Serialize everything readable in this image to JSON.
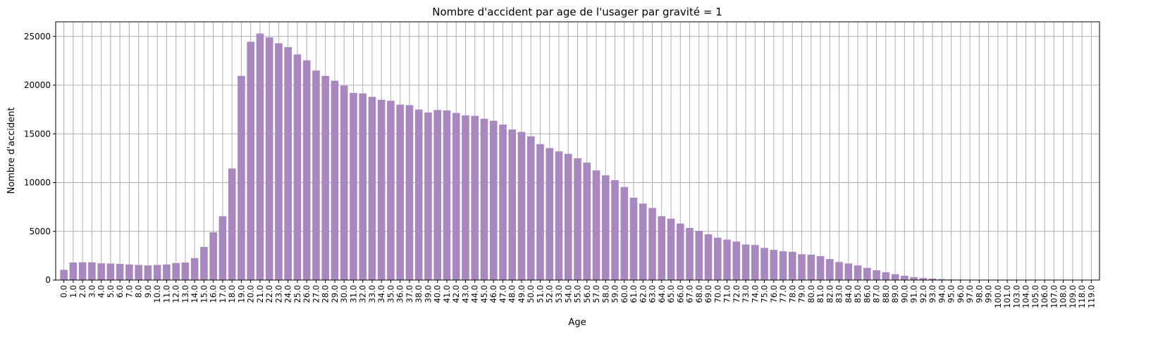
{
  "chart_data": {
    "type": "bar",
    "title": "Nombre d'accident par age de l'usager par gravité = 1",
    "xlabel": "Age",
    "ylabel": "Nombre d'accident",
    "ylim": [
      0,
      26500
    ],
    "yticks": [
      0,
      5000,
      10000,
      15000,
      20000,
      25000
    ],
    "grid": true,
    "bar_color": "#a987bf",
    "categories": [
      "0.0",
      "1.0",
      "2.0",
      "3.0",
      "4.0",
      "5.0",
      "6.0",
      "7.0",
      "8.0",
      "9.0",
      "10.0",
      "11.0",
      "12.0",
      "13.0",
      "14.0",
      "15.0",
      "16.0",
      "17.0",
      "18.0",
      "19.0",
      "20.0",
      "21.0",
      "22.0",
      "23.0",
      "24.0",
      "25.0",
      "26.0",
      "27.0",
      "28.0",
      "29.0",
      "30.0",
      "31.0",
      "32.0",
      "33.0",
      "34.0",
      "35.0",
      "36.0",
      "37.0",
      "38.0",
      "39.0",
      "40.0",
      "41.0",
      "42.0",
      "43.0",
      "44.0",
      "45.0",
      "46.0",
      "47.0",
      "48.0",
      "49.0",
      "50.0",
      "51.0",
      "52.0",
      "53.0",
      "54.0",
      "55.0",
      "56.0",
      "57.0",
      "58.0",
      "59.0",
      "60.0",
      "61.0",
      "62.0",
      "63.0",
      "64.0",
      "65.0",
      "66.0",
      "67.0",
      "68.0",
      "69.0",
      "70.0",
      "71.0",
      "72.0",
      "73.0",
      "74.0",
      "75.0",
      "76.0",
      "77.0",
      "78.0",
      "79.0",
      "80.0",
      "81.0",
      "82.0",
      "83.0",
      "84.0",
      "85.0",
      "86.0",
      "87.0",
      "88.0",
      "89.0",
      "90.0",
      "91.0",
      "92.0",
      "93.0",
      "94.0",
      "95.0",
      "96.0",
      "97.0",
      "98.0",
      "99.0",
      "100.0",
      "101.0",
      "103.0",
      "104.0",
      "105.0",
      "106.0",
      "107.0",
      "108.0",
      "109.0",
      "118.0",
      "119.0"
    ],
    "values": [
      1050,
      1800,
      1820,
      1820,
      1720,
      1700,
      1650,
      1600,
      1550,
      1500,
      1550,
      1600,
      1750,
      1800,
      2250,
      3400,
      4900,
      6550,
      11450,
      20950,
      24450,
      25300,
      24900,
      24300,
      23900,
      23150,
      22550,
      21500,
      20950,
      20450,
      19950,
      19200,
      19150,
      18800,
      18500,
      18400,
      18000,
      17950,
      17500,
      17200,
      17450,
      17400,
      17150,
      16900,
      16850,
      16550,
      16350,
      15950,
      15450,
      15200,
      14750,
      13950,
      13550,
      13200,
      12950,
      12500,
      12050,
      11250,
      10750,
      10250,
      9550,
      8450,
      7850,
      7400,
      6550,
      6300,
      5800,
      5350,
      5050,
      4700,
      4350,
      4150,
      3950,
      3650,
      3600,
      3300,
      3100,
      2950,
      2900,
      2650,
      2600,
      2450,
      2150,
      1850,
      1700,
      1500,
      1250,
      1000,
      800,
      600,
      450,
      300,
      200,
      150,
      100,
      60,
      50,
      30,
      20,
      15,
      10,
      8,
      6,
      5,
      4,
      3,
      3,
      2,
      2,
      1,
      1
    ]
  }
}
